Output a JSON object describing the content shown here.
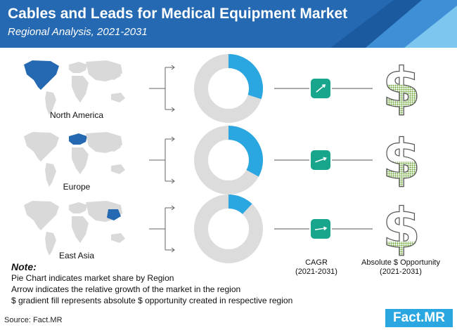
{
  "header": {
    "title": "Cables and Leads for Medical Equipment Market",
    "subtitle": "Regional Analysis, 2021-2031"
  },
  "regions": [
    {
      "name": "North America",
      "icon": "world-map-north-america-icon"
    },
    {
      "name": "Europe",
      "icon": "world-map-europe-icon"
    },
    {
      "name": "East Asia",
      "icon": "world-map-east-asia-icon"
    }
  ],
  "columns": {
    "cagr_label": "CAGR",
    "cagr_period": "(2021-2031)",
    "opportunity_label": "Absolute $ Opportunity",
    "opportunity_period": "(2021-2031)"
  },
  "note": {
    "title": "Note:",
    "lines": [
      "Pie Chart indicates market share by Region",
      "Arrow indicates the relative growth of the market in the region",
      "$ gradient fill represents absolute $ opportunity created in respective region"
    ]
  },
  "source": "Source: Fact.MR",
  "logo": "Fact.MR",
  "colors": {
    "header_blue": "#2469b2",
    "accent_blue": "#2aa6e0",
    "teal": "#17a58c",
    "donut_grey": "#dcdcdc",
    "dollar_green": "#7cb342"
  },
  "chart_data": {
    "type": "pie",
    "description_series": "market share by region",
    "categories": [
      "North America",
      "Europe",
      "East Asia"
    ],
    "share": [
      0.3,
      0.33,
      0.12
    ],
    "arrow_growth_angle": [
      40,
      20,
      8
    ],
    "opportunity_fill": [
      0.6,
      0.5,
      0.28
    ]
  }
}
